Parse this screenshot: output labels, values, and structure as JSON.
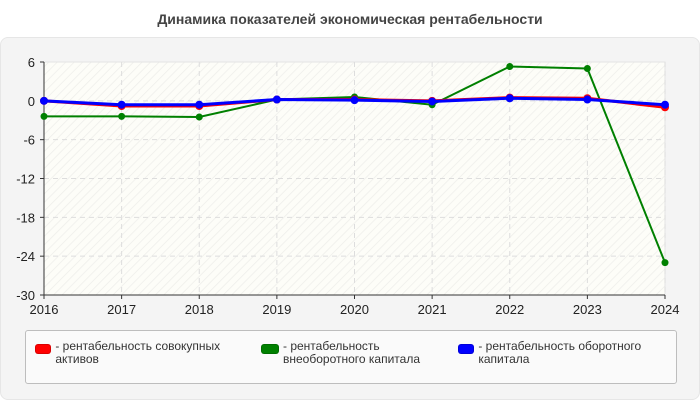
{
  "title": "Динамика показателей экономическая рентабельности",
  "legend": [
    {
      "label": "- рентабельность совокупных активов",
      "color": "#ff0000"
    },
    {
      "label": "- рентабельность внеоборотного капитала",
      "color": "#008000"
    },
    {
      "label": "- рентабельность оборотного капитала",
      "color": "#0000ff"
    }
  ],
  "chart_data": {
    "type": "line",
    "title": "Динамика показателей экономическая рентабельности",
    "xlabel": "",
    "ylabel": "",
    "x": [
      "2016",
      "2017",
      "2018",
      "2019",
      "2020",
      "2021",
      "2022",
      "2023",
      "2024"
    ],
    "yticks": [
      6,
      0,
      -6,
      -12,
      -18,
      -24,
      -30
    ],
    "ylim": [
      -30,
      6
    ],
    "grid": true,
    "legend_position": "bottom",
    "series": [
      {
        "name": "рентабельность совокупных активов",
        "color": "#ff0000",
        "values": [
          0.0,
          -0.8,
          -0.8,
          0.2,
          0.2,
          0.0,
          0.5,
          0.4,
          -1.0
        ]
      },
      {
        "name": "рентабельность внеоборотного капитала",
        "color": "#008000",
        "values": [
          -2.4,
          -2.4,
          -2.5,
          0.2,
          0.6,
          -0.6,
          5.3,
          5.0,
          -25.0
        ]
      },
      {
        "name": "рентабельность оборотного капитала",
        "color": "#0000ff",
        "values": [
          0.0,
          -0.6,
          -0.6,
          0.2,
          0.1,
          -0.1,
          0.4,
          0.2,
          -0.6
        ]
      }
    ]
  }
}
